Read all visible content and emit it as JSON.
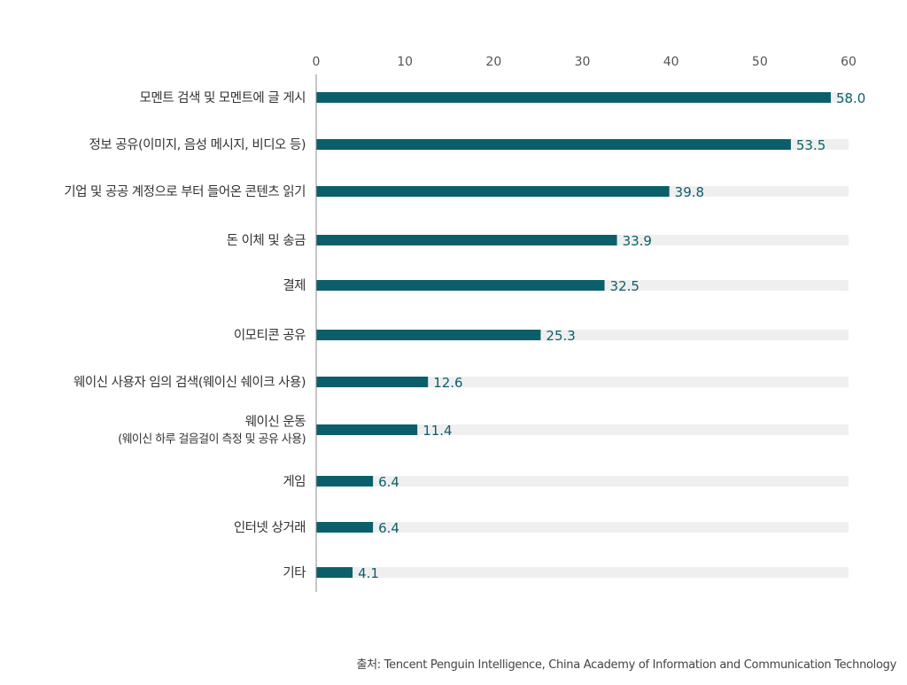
{
  "chart_data": {
    "type": "bar",
    "orientation": "horizontal",
    "categories": [
      [
        "모멘트 검색 및 모멘트에 글 게시"
      ],
      [
        "정보 공유(이미지, 음성 메시지, 비디오 등)"
      ],
      [
        "기업 및 공공 계정으로 부터 들어온 콘텐츠 읽기"
      ],
      [
        "돈 이체 및 송금"
      ],
      [
        "결제"
      ],
      [
        "이모티콘 공유"
      ],
      [
        "웨이신 사용자 임의 검색(웨이신 쉐이크 사용)"
      ],
      [
        "웨이신 운동",
        "(웨이신 하루 걸음걸이 측정 및 공유 사용)"
      ],
      [
        "게임"
      ],
      [
        "인터넷 상거래"
      ],
      [
        "기타"
      ]
    ],
    "values": [
      58.0,
      53.5,
      39.8,
      33.9,
      32.5,
      25.3,
      12.6,
      11.4,
      6.4,
      6.4,
      4.1
    ],
    "value_labels": [
      "58.0",
      "53.5",
      "39.8",
      "33.9",
      "32.5",
      "25.3",
      "12.6",
      "11.4",
      "6.4",
      "6.4",
      "4.1"
    ],
    "xlim": [
      0,
      60
    ],
    "x_ticks": [
      "0",
      "10",
      "20",
      "30",
      "40",
      "50",
      "60"
    ],
    "x_axis_position": "top",
    "grid": false,
    "background_track": true,
    "colors": {
      "bar": "#0b5f6b",
      "track": "#efefef",
      "value_label": "#0b5f6b",
      "category_text": "#333333",
      "tick_text": "#555555",
      "axis_line": "#888888"
    }
  },
  "source": "출처: Tencent Penguin Intelligence, China Academy of Information and Communication Technology"
}
